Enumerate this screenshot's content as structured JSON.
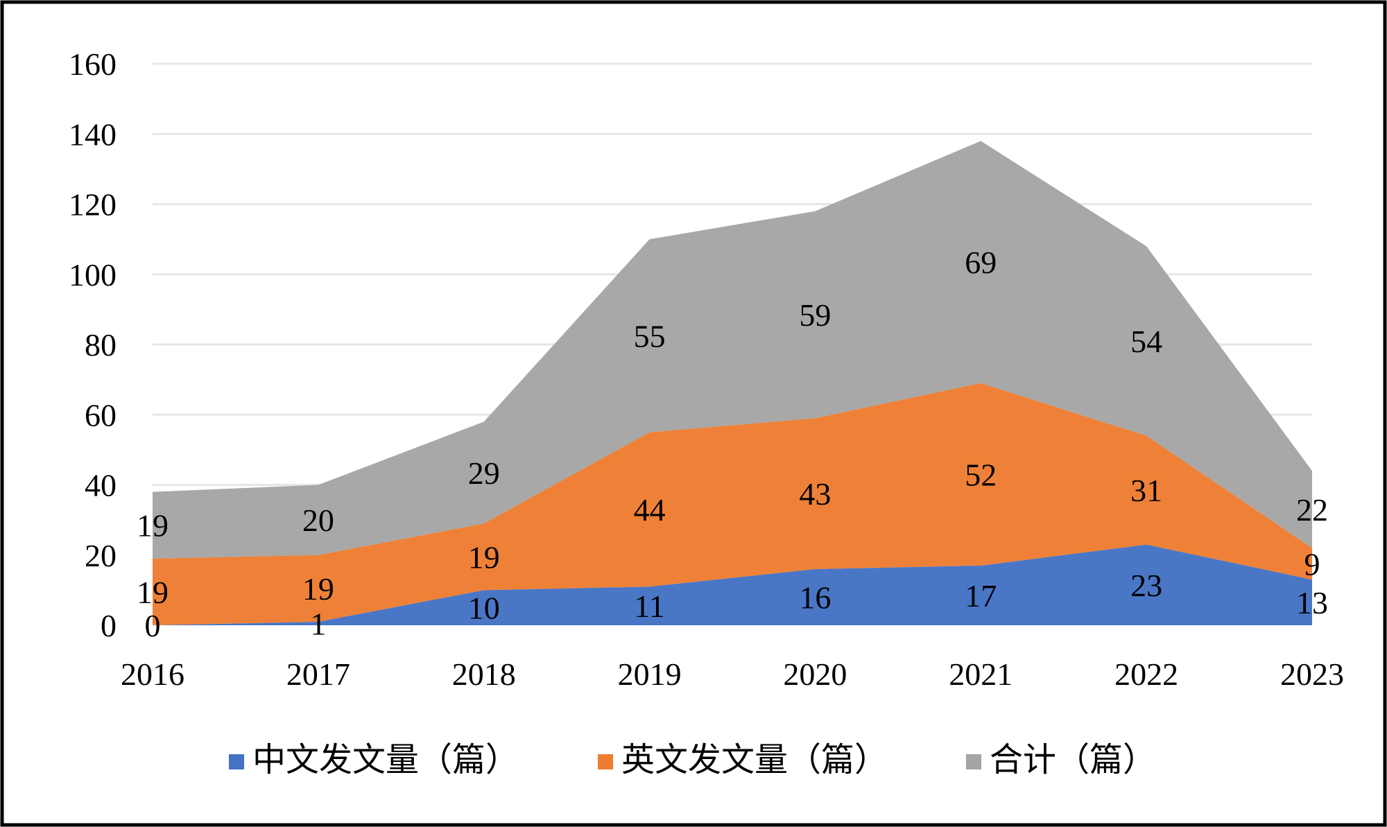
{
  "chart_data": {
    "type": "area",
    "title": "",
    "xlabel": "",
    "ylabel": "",
    "ylim": [
      0,
      160
    ],
    "yticks": [
      0,
      20,
      40,
      60,
      80,
      100,
      120,
      140,
      160
    ],
    "grid": true,
    "legend_position": "bottom",
    "stacked": true,
    "categories": [
      "2016",
      "2017",
      "2018",
      "2019",
      "2020",
      "2021",
      "2022",
      "2023"
    ],
    "series": [
      {
        "name": "中文发文量（篇）",
        "color": "#4472C4",
        "values": [
          0,
          1,
          10,
          11,
          16,
          17,
          23,
          13
        ]
      },
      {
        "name": "英文发文量（篇）",
        "color": "#ED7D31",
        "values": [
          19,
          19,
          19,
          44,
          43,
          52,
          31,
          9
        ]
      },
      {
        "name": "合计（篇）",
        "color": "#A5A5A5",
        "values": [
          19,
          20,
          29,
          55,
          59,
          69,
          54,
          22
        ]
      }
    ]
  }
}
